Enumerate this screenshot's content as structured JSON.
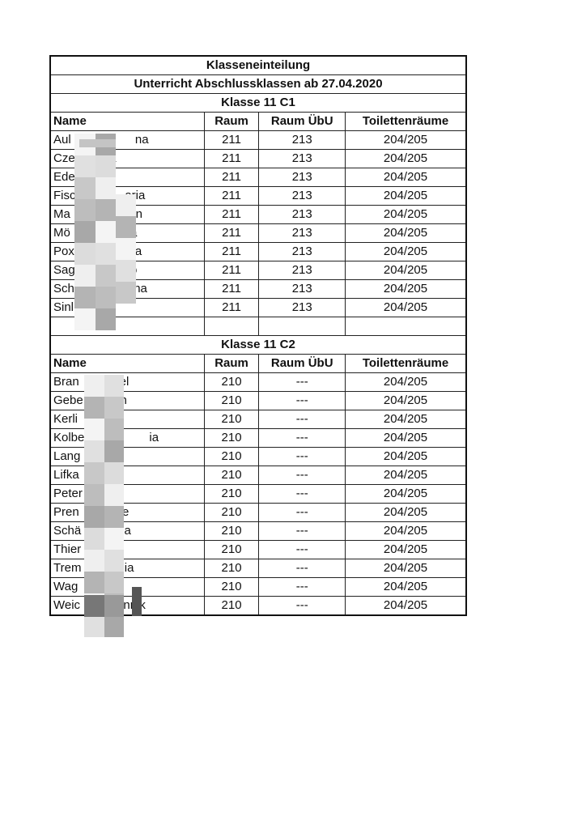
{
  "title": "Klasseneinteilung",
  "subtitle": "Unterricht Abschlussklassen ab 27.04.2020",
  "headers": {
    "name": "Name",
    "raum": "Raum",
    "raum_uebu": "Raum ÜbU",
    "toiletten": "Toilettenräume"
  },
  "classes": [
    {
      "title": "Klasse 11 C1",
      "rows": [
        {
          "name": "Aul       A          na",
          "raum": "211",
          "uebu": "213",
          "toil": "204/205"
        },
        {
          "name": "Cze      arta",
          "raum": "211",
          "uebu": "213",
          "toil": "204/205"
        },
        {
          "name": "Ede       a",
          "raum": "211",
          "uebu": "213",
          "toil": "204/205"
        },
        {
          "name": "Fisc      is      aria",
          "raum": "211",
          "uebu": "213",
          "toil": "204/205"
        },
        {
          "name": "Ma        s       vin",
          "raum": "211",
          "uebu": "213",
          "toil": "204/205"
        },
        {
          "name": "Mö        r       lia",
          "raum": "211",
          "uebu": "213",
          "toil": "204/205"
        },
        {
          "name": "Pox       e       na",
          "raum": "211",
          "uebu": "213",
          "toil": "204/205"
        },
        {
          "name": "Sag       V       o",
          "raum": "211",
          "uebu": "213",
          "toil": "204/205"
        },
        {
          "name": "Sch       g       lina",
          "raum": "211",
          "uebu": "213",
          "toil": "204/205"
        },
        {
          "name": "Sinl      ne",
          "raum": "211",
          "uebu": "213",
          "toil": "204/205"
        }
      ]
    },
    {
      "title": "Klasse 11 C2",
      "rows": [
        {
          "name": "Bran         rcel",
          "raum": "210",
          "uebu": "---",
          "toil": "204/205"
        },
        {
          "name": "Gebe         on",
          "raum": "210",
          "uebu": "---",
          "toil": "204/205"
        },
        {
          "name": "Kerli        el",
          "raum": "210",
          "uebu": "---",
          "toil": "204/205"
        },
        {
          "name": "Kolbe        r          ia",
          "raum": "210",
          "uebu": "---",
          "toil": "204/205"
        },
        {
          "name": "Lang         s",
          "raum": "210",
          "uebu": "---",
          "toil": "204/205"
        },
        {
          "name": "Lifka        z",
          "raum": "210",
          "uebu": "---",
          "toil": "204/205"
        },
        {
          "name": "Peter        e",
          "raum": "210",
          "uebu": "---",
          "toil": "204/205"
        },
        {
          "name": "Pren         al e",
          "raum": "210",
          "uebu": "---",
          "toil": "204/205"
        },
        {
          "name": "Schä         ni a",
          "raum": "210",
          "uebu": "---",
          "toil": "204/205"
        },
        {
          "name": "Thier",
          "raum": "210",
          "uebu": "---",
          "toil": "204/205"
        },
        {
          "name": "Trem         J  ia",
          "raum": "210",
          "uebu": "---",
          "toil": "204/205"
        },
        {
          "name": "Wag          k",
          "raum": "210",
          "uebu": "---",
          "toil": "204/205"
        },
        {
          "name": "Weic         Jannik",
          "raum": "210",
          "uebu": "---",
          "toil": "204/205"
        }
      ]
    }
  ]
}
